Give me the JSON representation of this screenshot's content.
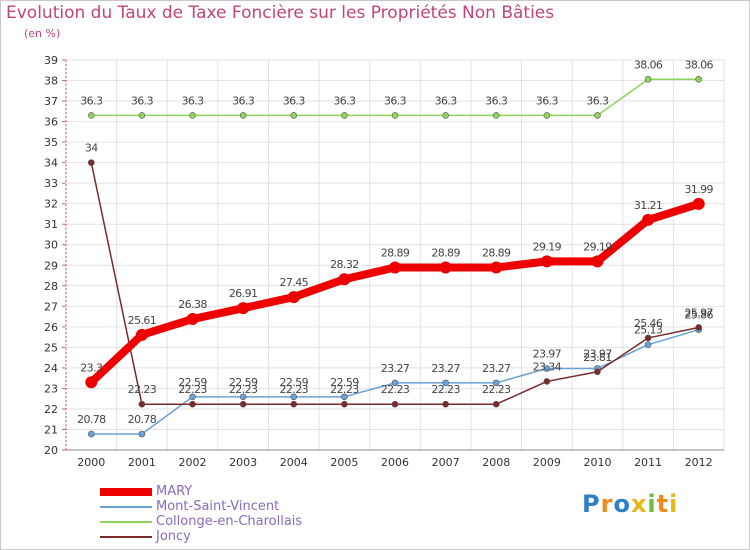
{
  "chart_data": {
    "type": "line",
    "title": "Evolution du Taux de Taxe Foncière sur les Propriétés Non Bâties",
    "unit_label": "(en %)",
    "categories": [
      "2000",
      "2001",
      "2002",
      "2003",
      "2004",
      "2005",
      "2006",
      "2007",
      "2008",
      "2009",
      "2010",
      "2011",
      "2012"
    ],
    "ylim": [
      20,
      39
    ],
    "yticks": [
      "20",
      "21",
      "22",
      "23",
      "24",
      "25",
      "26",
      "27",
      "28",
      "29",
      "30",
      "31",
      "32",
      "33",
      "34",
      "35",
      "36",
      "37",
      "38",
      "39"
    ],
    "series": [
      {
        "name": "MARY",
        "color": "#ee0000",
        "values": [
          23.3,
          25.61,
          26.38,
          26.91,
          27.45,
          28.32,
          28.89,
          28.89,
          28.89,
          29.19,
          29.19,
          31.21,
          31.99
        ],
        "labels": [
          "23.3",
          "25.61",
          "26.38",
          "26.91",
          "27.45",
          "28.32",
          "28.89",
          "28.89",
          "28.89",
          "29.19",
          "29.19",
          "31.21",
          "31.99"
        ]
      },
      {
        "name": "Mont-Saint-Vincent",
        "color": "#6aa2d8",
        "values": [
          20.78,
          20.78,
          22.59,
          22.59,
          22.59,
          22.59,
          23.27,
          23.27,
          23.27,
          23.97,
          23.97,
          25.13,
          25.86
        ],
        "labels": [
          "20.78",
          "20.78",
          "22.59",
          "22.59",
          "22.59",
          "22.59",
          "23.27",
          "23.27",
          "23.27",
          "23.97",
          "23.97",
          "25.13",
          "25.86"
        ]
      },
      {
        "name": "Collonge-en-Charollais",
        "color": "#8fd45a",
        "values": [
          36.3,
          36.3,
          36.3,
          36.3,
          36.3,
          36.3,
          36.3,
          36.3,
          36.3,
          36.3,
          36.3,
          38.06,
          38.06
        ],
        "labels": [
          "36.3",
          "36.3",
          "36.3",
          "36.3",
          "36.3",
          "36.3",
          "36.3",
          "36.3",
          "36.3",
          "36.3",
          "36.3",
          "38.06",
          "38.06"
        ]
      },
      {
        "name": "Joncy",
        "color": "#7a2a2a",
        "values": [
          34,
          22.23,
          22.23,
          22.23,
          22.23,
          22.23,
          22.23,
          22.23,
          22.23,
          23.34,
          23.81,
          25.46,
          25.97
        ],
        "labels": [
          "34",
          "22.23",
          "22.23",
          "22.23",
          "22.23",
          "22.23",
          "22.23",
          "22.23",
          "22.23",
          "23.34",
          "23.81",
          "25.46",
          "25.97"
        ]
      }
    ],
    "legend": [
      "MARY",
      "Mont-Saint-Vincent",
      "Collonge-en-Charollais",
      "Joncy"
    ]
  },
  "logo": {
    "text": "Proxiti",
    "letters": [
      "P",
      "r",
      "o",
      "x",
      "i",
      "t",
      "i"
    ]
  }
}
